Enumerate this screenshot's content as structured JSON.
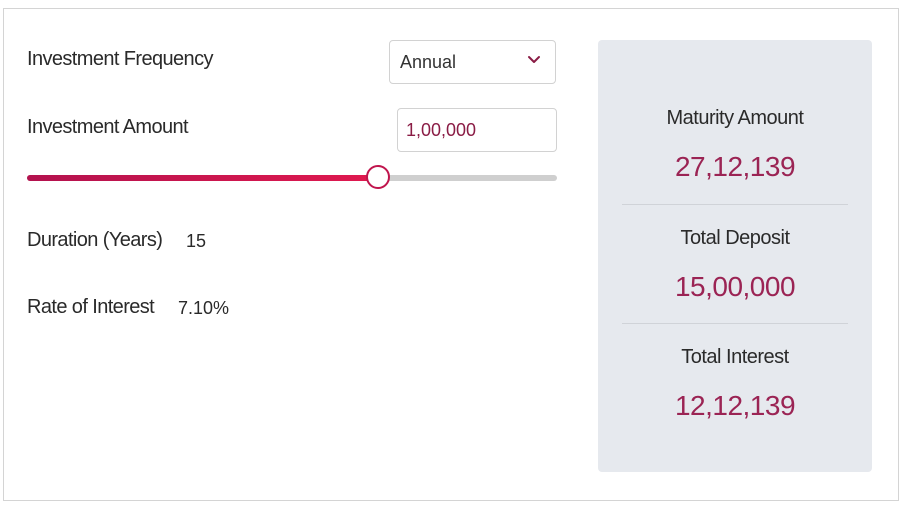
{
  "calculator": {
    "frequency": {
      "label": "Investment Frequency",
      "selected": "Annual"
    },
    "amount": {
      "label": "Investment Amount",
      "value": "1,00,000",
      "slider_fraction": 0.66
    },
    "duration": {
      "label": "Duration (Years)",
      "value": "15"
    },
    "rate": {
      "label": "Rate of Interest",
      "value": "7.10%"
    }
  },
  "results": {
    "maturity": {
      "label": "Maturity Amount",
      "value": "27,12,139"
    },
    "deposit": {
      "label": "Total Deposit",
      "value": "15,00,000"
    },
    "interest": {
      "label": "Total Interest",
      "value": "12,12,139"
    }
  },
  "colors": {
    "accent": "#c0154d",
    "result_value": "#9b2454",
    "panel_bg": "#e6e9ee"
  },
  "icons": {
    "dropdown": "chevron-down-icon"
  }
}
